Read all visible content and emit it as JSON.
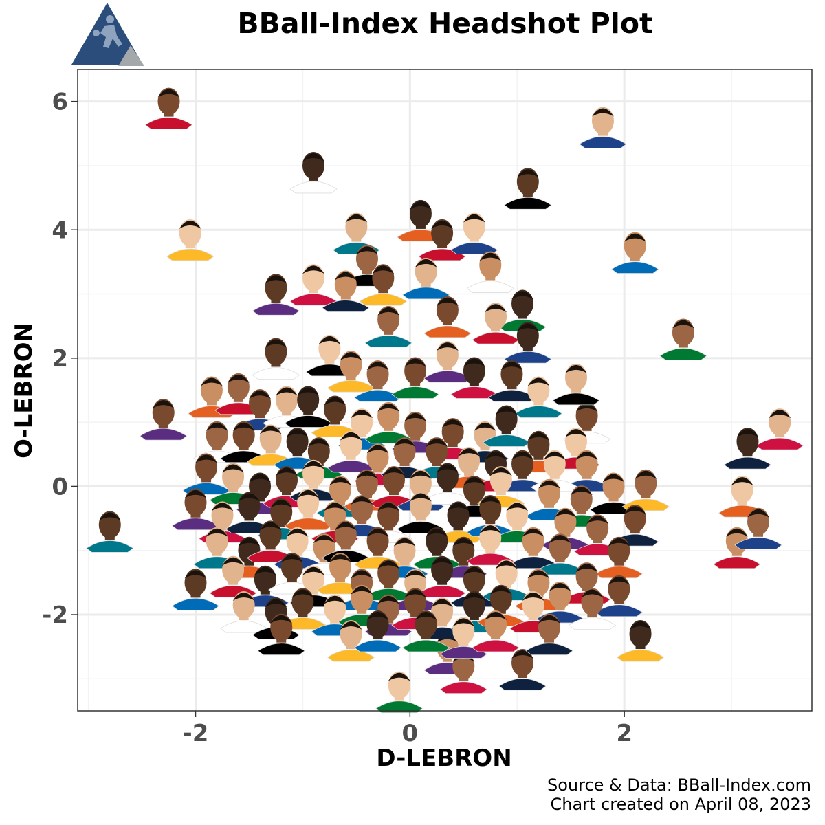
{
  "header": {
    "title": "BBall-Index Headshot Plot",
    "logo": "basketball-player-triangle-logo",
    "logo_colors": {
      "primary": "#2a4d7c",
      "secondary": "#a5a8ab"
    }
  },
  "footer": {
    "source": "Source & Data: BBall-Index.com",
    "created": "Chart created on April 08, 2023"
  },
  "chart_data": {
    "type": "scatter",
    "title": "BBall-Index Headshot Plot",
    "xlabel": "D-LEBRON",
    "ylabel": "O-LEBRON",
    "xlim": [
      -3.1,
      3.75
    ],
    "ylim": [
      -3.5,
      6.5
    ],
    "xticks": [
      -2,
      0,
      2
    ],
    "yticks": [
      6,
      4,
      2,
      0,
      -2
    ],
    "xtick_labels": [
      "-2",
      "0",
      "2"
    ],
    "ytick_labels": [
      "6",
      "4",
      "2",
      "0",
      "-2"
    ],
    "grid": true,
    "marker": "player-headshot",
    "points": [
      {
        "x": -2.25,
        "y": 6.0
      },
      {
        "x": 1.8,
        "y": 5.7
      },
      {
        "x": -0.9,
        "y": 5.0
      },
      {
        "x": 1.1,
        "y": 4.75
      },
      {
        "x": -2.05,
        "y": 3.95
      },
      {
        "x": 2.1,
        "y": 3.75
      },
      {
        "x": 2.55,
        "y": 2.4
      },
      {
        "x": -2.3,
        "y": 1.15
      },
      {
        "x": 3.45,
        "y": 1.0
      },
      {
        "x": 3.15,
        "y": 0.7
      },
      {
        "x": -2.8,
        "y": -0.6
      },
      {
        "x": 3.1,
        "y": -0.05
      },
      {
        "x": 3.05,
        "y": -0.85
      },
      {
        "x": 3.25,
        "y": -0.55
      },
      {
        "x": 1.65,
        "y": 1.1
      },
      {
        "x": 1.55,
        "y": 1.7
      },
      {
        "x": 2.15,
        "y": -2.3
      },
      {
        "x": -2.0,
        "y": -1.5
      },
      {
        "x": -0.1,
        "y": -3.1
      },
      {
        "x": 0.35,
        "y": -2.5
      },
      {
        "x": 0.5,
        "y": -2.8
      },
      {
        "x": 1.05,
        "y": -2.75
      },
      {
        "x": -0.5,
        "y": 4.05
      },
      {
        "x": 0.1,
        "y": 4.25
      },
      {
        "x": 0.3,
        "y": 3.95
      },
      {
        "x": 0.6,
        "y": 4.05
      },
      {
        "x": 0.75,
        "y": 3.45
      },
      {
        "x": -0.4,
        "y": 3.55
      },
      {
        "x": -0.25,
        "y": 3.25
      },
      {
        "x": 0.15,
        "y": 3.35
      },
      {
        "x": 1.05,
        "y": 2.85
      },
      {
        "x": -1.25,
        "y": 3.1
      },
      {
        "x": -0.9,
        "y": 3.25
      },
      {
        "x": -0.6,
        "y": 3.15
      },
      {
        "x": -0.2,
        "y": 2.6
      },
      {
        "x": 0.35,
        "y": 2.75
      },
      {
        "x": 0.8,
        "y": 2.65
      },
      {
        "x": 1.1,
        "y": 2.35
      },
      {
        "x": -1.25,
        "y": 2.1
      },
      {
        "x": -0.75,
        "y": 2.15
      },
      {
        "x": -0.55,
        "y": 1.9
      },
      {
        "x": -0.3,
        "y": 1.75
      },
      {
        "x": 0.05,
        "y": 1.8
      },
      {
        "x": 0.35,
        "y": 2.05
      },
      {
        "x": 0.6,
        "y": 1.8
      },
      {
        "x": 0.95,
        "y": 1.75
      },
      {
        "x": 1.2,
        "y": 1.5
      },
      {
        "x": -1.85,
        "y": 1.5
      },
      {
        "x": -1.6,
        "y": 1.55
      },
      {
        "x": -1.4,
        "y": 1.3
      },
      {
        "x": -1.15,
        "y": 1.35
      },
      {
        "x": -0.95,
        "y": 1.35
      },
      {
        "x": -0.7,
        "y": 1.2
      },
      {
        "x": -0.45,
        "y": 1.0
      },
      {
        "x": -0.2,
        "y": 1.1
      },
      {
        "x": 0.05,
        "y": 0.95
      },
      {
        "x": 0.4,
        "y": 0.85
      },
      {
        "x": 0.7,
        "y": 0.8
      },
      {
        "x": 0.9,
        "y": 1.05
      },
      {
        "x": 1.2,
        "y": 0.65
      },
      {
        "x": 1.55,
        "y": 0.7
      },
      {
        "x": 1.65,
        "y": 0.35
      },
      {
        "x": -1.8,
        "y": 0.8
      },
      {
        "x": -1.55,
        "y": 0.8
      },
      {
        "x": -1.3,
        "y": 0.75
      },
      {
        "x": -1.05,
        "y": 0.7
      },
      {
        "x": -0.85,
        "y": 0.55
      },
      {
        "x": -0.55,
        "y": 0.65
      },
      {
        "x": -0.3,
        "y": 0.45
      },
      {
        "x": -0.05,
        "y": 0.55
      },
      {
        "x": 0.25,
        "y": 0.55
      },
      {
        "x": 0.55,
        "y": 0.4
      },
      {
        "x": 0.8,
        "y": 0.35
      },
      {
        "x": 1.05,
        "y": 0.35
      },
      {
        "x": 1.35,
        "y": 0.35
      },
      {
        "x": 1.9,
        "y": 0.0
      },
      {
        "x": 2.2,
        "y": 0.05
      },
      {
        "x": -1.9,
        "y": 0.3
      },
      {
        "x": -1.65,
        "y": 0.15
      },
      {
        "x": -1.4,
        "y": 0.0
      },
      {
        "x": -1.15,
        "y": 0.1
      },
      {
        "x": -0.9,
        "y": 0.2
      },
      {
        "x": -0.65,
        "y": -0.05
      },
      {
        "x": -0.4,
        "y": 0.05
      },
      {
        "x": -0.15,
        "y": 0.1
      },
      {
        "x": 0.1,
        "y": 0.05
      },
      {
        "x": 0.35,
        "y": 0.15
      },
      {
        "x": 0.6,
        "y": -0.05
      },
      {
        "x": 0.85,
        "y": 0.1
      },
      {
        "x": 1.3,
        "y": -0.1
      },
      {
        "x": 1.6,
        "y": -0.2
      },
      {
        "x": -2.0,
        "y": -0.25
      },
      {
        "x": -1.75,
        "y": -0.45
      },
      {
        "x": -1.5,
        "y": -0.3
      },
      {
        "x": -1.2,
        "y": -0.4
      },
      {
        "x": -0.95,
        "y": -0.25
      },
      {
        "x": -0.7,
        "y": -0.45
      },
      {
        "x": -0.45,
        "y": -0.35
      },
      {
        "x": -0.2,
        "y": -0.45
      },
      {
        "x": 0.1,
        "y": -0.3
      },
      {
        "x": 0.45,
        "y": -0.45
      },
      {
        "x": 0.75,
        "y": -0.35
      },
      {
        "x": 1.0,
        "y": -0.45
      },
      {
        "x": 1.45,
        "y": -0.55
      },
      {
        "x": 1.75,
        "y": -0.65
      },
      {
        "x": 2.1,
        "y": -0.5
      },
      {
        "x": -1.8,
        "y": -0.85
      },
      {
        "x": -1.5,
        "y": -1.0
      },
      {
        "x": -1.3,
        "y": -0.75
      },
      {
        "x": -1.05,
        "y": -0.85
      },
      {
        "x": -0.8,
        "y": -0.95
      },
      {
        "x": -0.6,
        "y": -0.75
      },
      {
        "x": -0.3,
        "y": -0.85
      },
      {
        "x": -0.05,
        "y": -1.0
      },
      {
        "x": 0.25,
        "y": -0.85
      },
      {
        "x": 0.5,
        "y": -1.0
      },
      {
        "x": 0.75,
        "y": -0.8
      },
      {
        "x": 1.15,
        "y": -0.85
      },
      {
        "x": 1.4,
        "y": -0.95
      },
      {
        "x": 1.95,
        "y": -1.0
      },
      {
        "x": -1.65,
        "y": -1.3
      },
      {
        "x": -1.35,
        "y": -1.45
      },
      {
        "x": -1.1,
        "y": -1.25
      },
      {
        "x": -0.9,
        "y": -1.45
      },
      {
        "x": -0.65,
        "y": -1.25
      },
      {
        "x": -0.45,
        "y": -1.5
      },
      {
        "x": -0.2,
        "y": -1.35
      },
      {
        "x": 0.05,
        "y": -1.5
      },
      {
        "x": 0.3,
        "y": -1.3
      },
      {
        "x": 0.6,
        "y": -1.45
      },
      {
        "x": 0.9,
        "y": -1.35
      },
      {
        "x": 1.2,
        "y": -1.5
      },
      {
        "x": 1.65,
        "y": -1.4
      },
      {
        "x": 1.95,
        "y": -1.6
      },
      {
        "x": -1.55,
        "y": -1.85
      },
      {
        "x": -1.25,
        "y": -1.95
      },
      {
        "x": -1.0,
        "y": -1.8
      },
      {
        "x": -0.7,
        "y": -1.9
      },
      {
        "x": -0.45,
        "y": -1.75
      },
      {
        "x": -0.2,
        "y": -1.9
      },
      {
        "x": 0.05,
        "y": -1.8
      },
      {
        "x": 0.3,
        "y": -1.95
      },
      {
        "x": 0.6,
        "y": -1.85
      },
      {
        "x": 0.85,
        "y": -1.75
      },
      {
        "x": 1.15,
        "y": -1.85
      },
      {
        "x": 1.4,
        "y": -1.7
      },
      {
        "x": 1.7,
        "y": -1.8
      },
      {
        "x": -1.2,
        "y": -2.2
      },
      {
        "x": -0.55,
        "y": -2.3
      },
      {
        "x": -0.3,
        "y": -2.15
      },
      {
        "x": 0.15,
        "y": -2.15
      },
      {
        "x": 0.5,
        "y": -2.25
      },
      {
        "x": 0.8,
        "y": -2.15
      },
      {
        "x": 1.3,
        "y": -2.2
      }
    ]
  }
}
